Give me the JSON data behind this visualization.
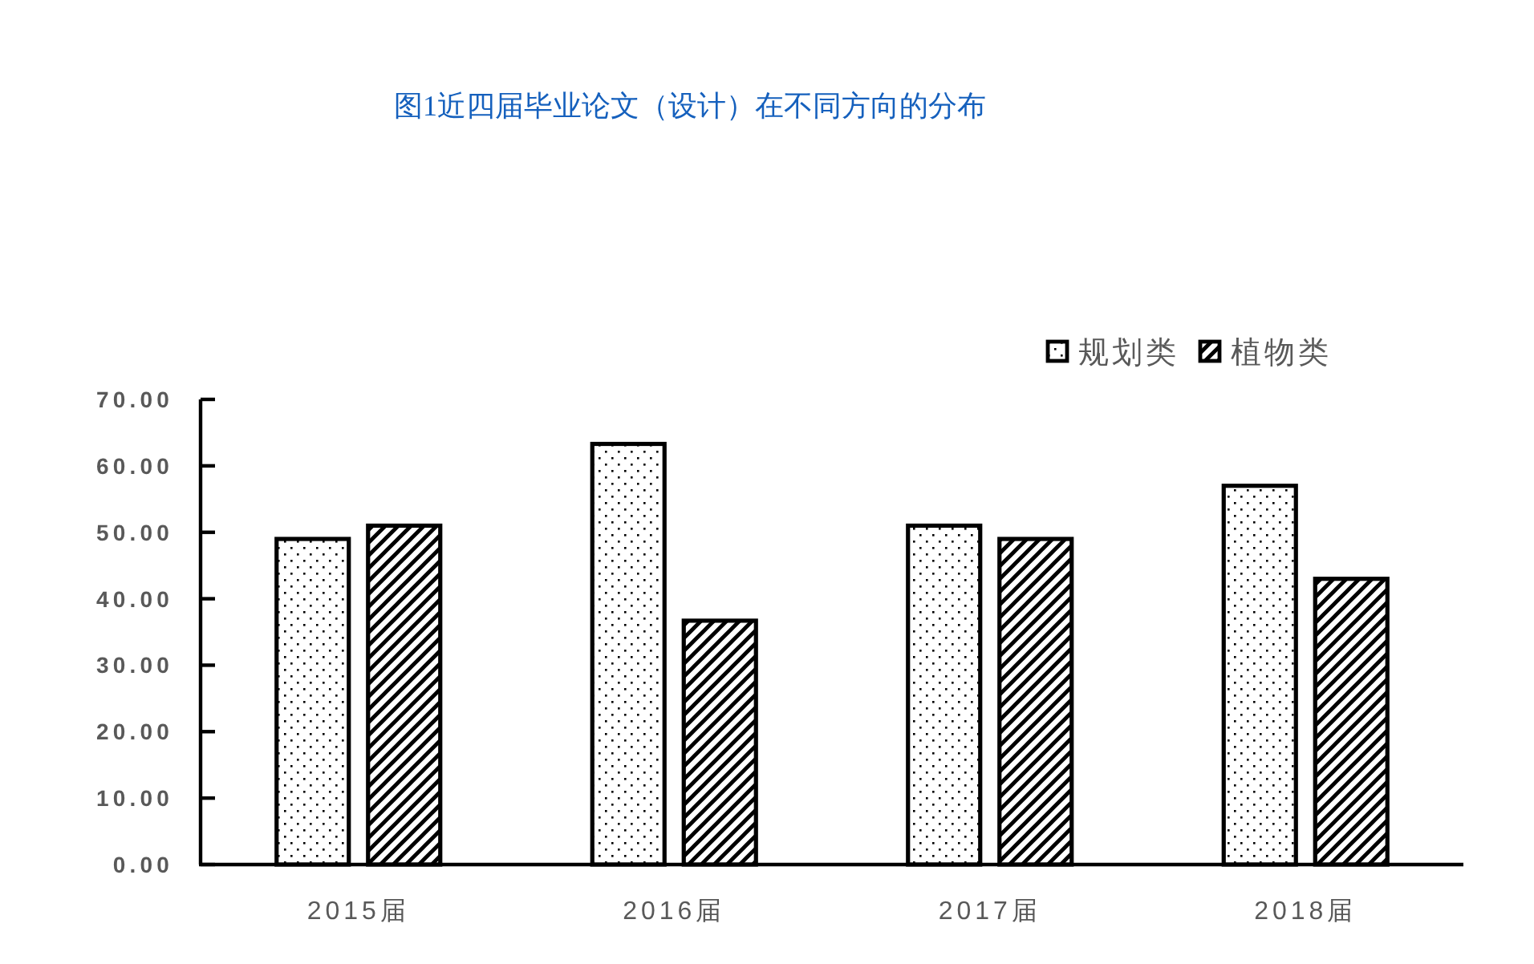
{
  "chart_data": {
    "type": "bar",
    "title": "图1近四届毕业论文（设计）在不同方向的分布",
    "categories": [
      "2015届",
      "2016届",
      "2017届",
      "2018届"
    ],
    "series": [
      {
        "name": "规划类",
        "color": "#000000",
        "values": [
          49,
          63.3,
          51,
          57
        ]
      },
      {
        "name": "植物类",
        "color": "#000000",
        "values": [
          51,
          36.7,
          49,
          43
        ]
      }
    ],
    "ylim": [
      0,
      70
    ],
    "yticks": [
      {
        "value": 0,
        "label": "0.00"
      },
      {
        "value": 10,
        "label": "10.00"
      },
      {
        "value": 20,
        "label": "20.00"
      },
      {
        "value": 30,
        "label": "30.00"
      },
      {
        "value": 40,
        "label": "40.00"
      },
      {
        "value": 50,
        "label": "50.00"
      },
      {
        "value": 60,
        "label": "60.00"
      },
      {
        "value": 70,
        "label": "70.00"
      }
    ],
    "legend": "top right"
  }
}
